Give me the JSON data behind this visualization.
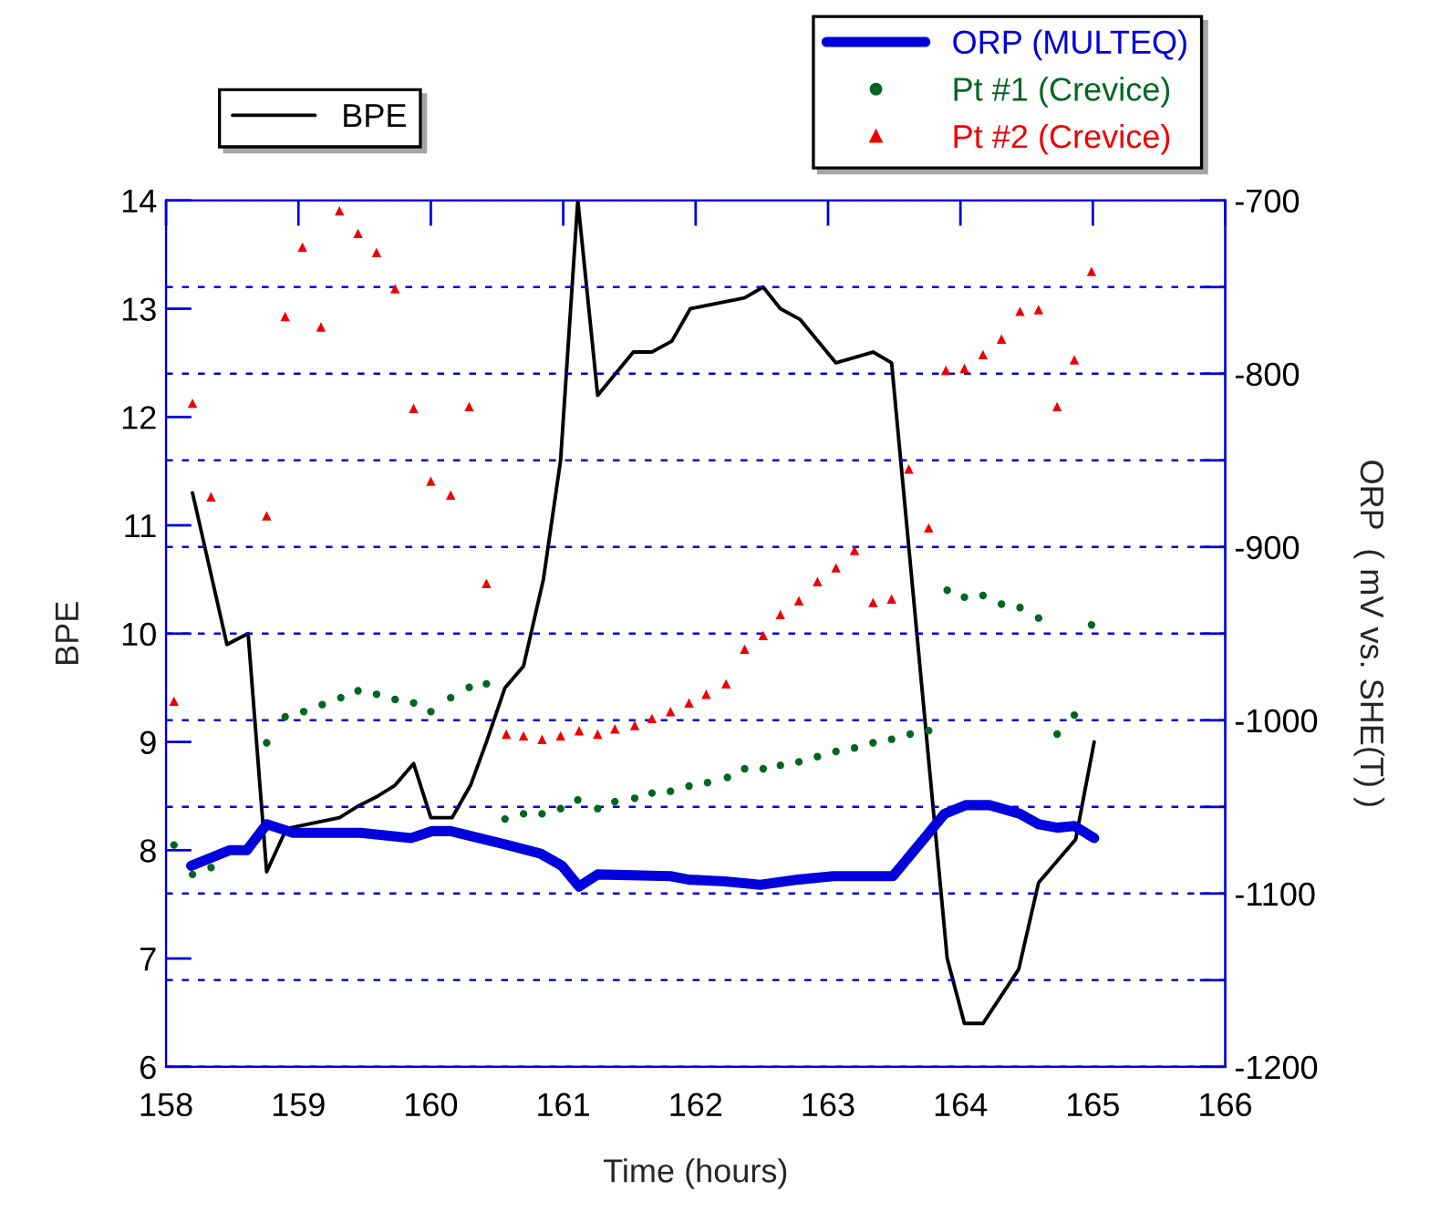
{
  "chart_data": {
    "type": "line",
    "xlabel": "Time (hours)",
    "ylabel": "BPE",
    "y2label": "ORP  ( mV vs. SHE(T) )",
    "xlim": [
      158,
      166
    ],
    "xticks": [
      158,
      159,
      160,
      161,
      162,
      163,
      164,
      165,
      166
    ],
    "ylim": [
      6,
      14
    ],
    "yticks": [
      6,
      7,
      8,
      9,
      10,
      11,
      12,
      13,
      14
    ],
    "y2lim": [
      -1200,
      -700
    ],
    "y2ticks": [
      -1200,
      {
        "value": -1150,
        "label": null
      },
      -1100,
      {
        "value": -1050,
        "label": null
      },
      -1000,
      {
        "value": -950,
        "label": null
      },
      -900,
      {
        "value": -850,
        "label": null
      },
      -800,
      {
        "value": -750,
        "label": null
      },
      -700
    ],
    "grid": "y2",
    "legend": "top",
    "marker": "none",
    "line_style": "solid",
    "series": [
      {
        "name": "BPE",
        "color": "#000000",
        "x": [
          158.2,
          158.46,
          158.62,
          158.76,
          158.91,
          159.31,
          159.44,
          159.6,
          159.73,
          159.87,
          160.0,
          160.16,
          160.3,
          160.42,
          160.56,
          160.7,
          160.85,
          160.98,
          161.11,
          161.26,
          161.53,
          161.67,
          161.82,
          161.96,
          162.37,
          162.51,
          162.64,
          162.79,
          163.06,
          163.34,
          163.48,
          163.9,
          164.03,
          164.17,
          164.44,
          164.59,
          164.73,
          164.87,
          165.01
        ],
        "values": [
          11.3,
          9.9,
          10.0,
          7.8,
          8.2,
          8.3,
          8.4,
          8.5,
          8.6,
          8.8,
          8.3,
          8.3,
          8.6,
          9.0,
          9.5,
          9.7,
          10.5,
          11.6,
          14.0,
          12.2,
          12.6,
          12.6,
          12.7,
          13.0,
          13.1,
          13.2,
          13.0,
          12.9,
          12.5,
          12.6,
          12.5,
          7.0,
          6.4,
          6.4,
          6.9,
          7.7,
          7.9,
          8.1,
          9.0
        ]
      },
      {
        "name": "ORP (MULTEQ)",
        "type": "line",
        "axis": "y2",
        "color": "#0000dd",
        "x": [
          158.19,
          158.48,
          158.61,
          158.76,
          158.96,
          159.47,
          159.85,
          160.01,
          160.15,
          160.58,
          160.83,
          160.99,
          161.12,
          161.26,
          161.81,
          161.95,
          162.22,
          162.49,
          162.77,
          163.04,
          163.49,
          163.88,
          164.04,
          164.22,
          164.45,
          164.59,
          164.73,
          164.86,
          165.01
        ],
        "values": [
          -1084,
          -1075,
          -1075,
          -1060,
          -1065,
          -1065,
          -1068,
          -1064,
          -1064,
          -1072,
          -1077,
          -1084,
          -1096,
          -1089,
          -1090,
          -1092,
          -1093,
          -1095,
          -1092,
          -1090,
          -1090,
          -1054,
          -1049,
          -1049,
          -1054,
          -1060,
          -1062,
          -1061,
          -1068
        ]
      },
      {
        "name": "Pt #1 (Crevice)",
        "type": "scatter",
        "axis": "y2",
        "marker": "circle",
        "color": "#006622",
        "x": [
          158.06,
          158.2,
          158.34,
          158.76,
          158.9,
          159.04,
          159.18,
          159.32,
          159.45,
          159.59,
          159.73,
          159.87,
          160.0,
          160.15,
          160.29,
          160.42,
          160.56,
          160.7,
          160.84,
          160.98,
          161.11,
          161.26,
          161.39,
          161.54,
          161.67,
          161.81,
          161.95,
          162.09,
          162.24,
          162.37,
          162.51,
          162.64,
          162.78,
          162.92,
          163.06,
          163.2,
          163.34,
          163.48,
          163.62,
          163.76,
          163.9,
          164.03,
          164.17,
          164.31,
          164.45,
          164.59,
          164.73,
          164.86,
          164.99
        ],
        "values": [
          -1072,
          -1089,
          -1085,
          -1013,
          -998,
          -995,
          -991,
          -987,
          -983,
          -985,
          -988,
          -990,
          -995,
          -987,
          -981,
          -979,
          -1057,
          -1054,
          -1054,
          -1051,
          -1046,
          -1051,
          -1047,
          -1045,
          -1042,
          -1041,
          -1038,
          -1036,
          -1033,
          -1028,
          -1028,
          -1026,
          -1024,
          -1021,
          -1018,
          -1016,
          -1013,
          -1011,
          -1008,
          -1006,
          -925,
          -929,
          -928,
          -933,
          -935,
          -941,
          -1008,
          -997,
          -945
        ]
      },
      {
        "name": "Pt #2 (Crevice)",
        "type": "scatter",
        "axis": "y2",
        "marker": "triangle",
        "color": "#ee0000",
        "x": [
          158.06,
          158.2,
          158.34,
          158.76,
          158.9,
          159.03,
          159.17,
          159.31,
          159.45,
          159.59,
          159.73,
          159.87,
          160.0,
          160.15,
          160.29,
          160.42,
          160.57,
          160.7,
          160.84,
          160.98,
          161.12,
          161.26,
          161.39,
          161.54,
          161.67,
          161.81,
          161.95,
          162.08,
          162.23,
          162.37,
          162.51,
          162.64,
          162.78,
          162.92,
          163.06,
          163.2,
          163.34,
          163.48,
          163.61,
          163.76,
          163.89,
          164.03,
          164.17,
          164.31,
          164.45,
          164.59,
          164.73,
          164.86,
          164.99
        ],
        "values": [
          -989,
          -817,
          -871,
          -882,
          -767,
          -727,
          -773,
          -706,
          -719,
          -730,
          -751,
          -820,
          -862,
          -870,
          -819,
          -921,
          -1008,
          -1009,
          -1011,
          -1009,
          -1006,
          -1008,
          -1005,
          -1003,
          -999,
          -995,
          -990,
          -985,
          -979,
          -959,
          -951,
          -939,
          -931,
          -920,
          -912,
          -902,
          -932,
          -930,
          -855,
          -889,
          -798,
          -797,
          -789,
          -780,
          -764,
          -763,
          -819,
          -792,
          -741
        ]
      }
    ]
  }
}
